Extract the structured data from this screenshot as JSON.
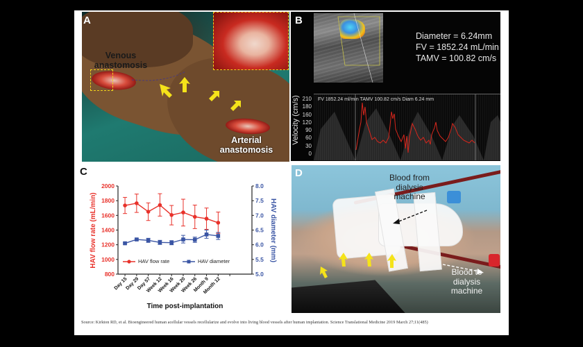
{
  "figure": {
    "source_text": "Source: Kirkton RD, et al. Bioengineered human acellular vessels recellularize and evolve into living blood vessels after human implantation. Science Translational Medicine 2019 March 27;11(485)"
  },
  "panel_a": {
    "letter": "A",
    "venous_label_1": "Venous",
    "venous_label_2": "anastomosis",
    "arterial_label_1": "Arterial",
    "arterial_label_2": "anastomosis",
    "colors": {
      "highlight_box": "#f2d51a",
      "arrows": "#f5e31a"
    }
  },
  "panel_b": {
    "letter": "B",
    "stats": {
      "diameter": "Diameter  = 6.24mm",
      "fv": "FV = 1852.24 mL/min",
      "tamv": "TAMV  = 100.82 cm/s"
    },
    "spectral_caption": "FV 1852.24 ml/min  TAMV 100.82 cm/s  Diam 6.24 mm",
    "y_axis_label": "Velocity (cm/s)",
    "y_ticks": [
      "210",
      "180",
      "160",
      "120",
      "90",
      "60",
      "30",
      "0"
    ],
    "trace_color": "#d8261c"
  },
  "panel_c": {
    "letter": "C",
    "left_axis_label": "HAV flow rate (mL/min)",
    "right_axis_label": "HAV diameter (mm)",
    "x_axis_label": "Time post-implantation",
    "legend": {
      "flow": "HAV flow rate",
      "diameter": "HAV diameter"
    },
    "left_ticks": [
      "2000",
      "1800",
      "1600",
      "1400",
      "1200",
      "1000",
      "800"
    ],
    "right_ticks": [
      "8.0",
      "7.5",
      "7.0",
      "6.5",
      "6.0",
      "5.5",
      "5.0"
    ]
  },
  "panel_d": {
    "letter": "D",
    "from_label_1": "Blood from",
    "from_label_2": "dialysis",
    "from_label_3": "machine",
    "to_label_1": "Blood to",
    "to_label_2": "dialysis",
    "to_label_3": "machine"
  },
  "chart_data": {
    "type": "line",
    "title": "",
    "xlabel": "Time post-implantation",
    "categories": [
      "Day 15",
      "Day 29",
      "Day 57",
      "Week 12",
      "Week 16",
      "Week 20",
      "Week 26",
      "Month 9",
      "Month 12"
    ],
    "series": [
      {
        "name": "HAV flow rate",
        "axis": "left",
        "color": "#e8312a",
        "marker": "circle",
        "values": [
          1735,
          1765,
          1650,
          1740,
          1605,
          1640,
          1580,
          1555,
          1500
        ],
        "error_upper": [
          1845,
          1890,
          1770,
          1895,
          1735,
          1820,
          1740,
          1700,
          1645
        ],
        "error_lower": [
          1625,
          1640,
          1530,
          1590,
          1470,
          1455,
          1420,
          1410,
          1355
        ]
      },
      {
        "name": "HAV diameter",
        "axis": "right",
        "color": "#3a55a4",
        "marker": "square",
        "values": [
          6.05,
          6.18,
          6.15,
          6.08,
          6.07,
          6.18,
          6.17,
          6.35,
          6.3
        ],
        "error_upper": [
          6.08,
          6.22,
          6.22,
          6.15,
          6.14,
          6.32,
          6.26,
          6.5,
          6.42
        ],
        "error_lower": [
          6.02,
          6.14,
          6.08,
          6.01,
          6.0,
          6.06,
          6.08,
          6.22,
          6.18
        ]
      }
    ],
    "ylabel_left": "HAV flow rate (mL/min)",
    "ylim_left": [
      800,
      2000
    ],
    "ylabel_right": "HAV diameter (mm)",
    "ylim_right": [
      5.0,
      8.0
    ],
    "grid": false,
    "legend_position": "bottom-inside"
  }
}
